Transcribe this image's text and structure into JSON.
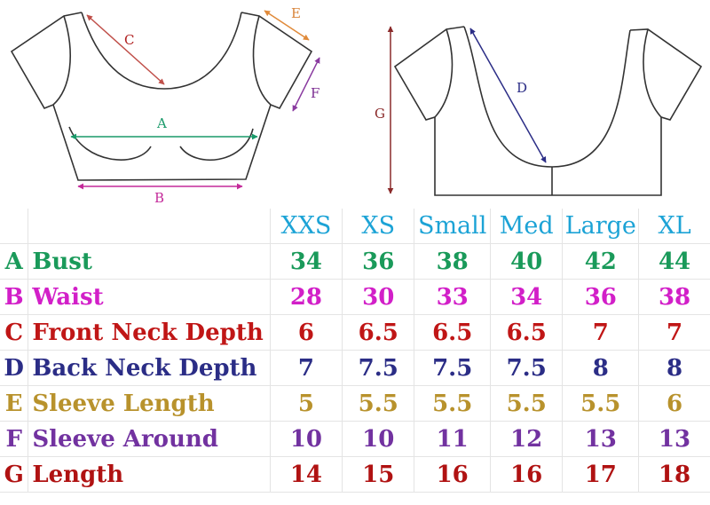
{
  "diagram": {
    "front_labels": {
      "A": "A",
      "B": "B",
      "C": "C",
      "E": "E",
      "F": "F"
    },
    "back_labels": {
      "D": "D",
      "G": "G"
    }
  },
  "table": {
    "header_color": "#1ca3d6",
    "sizes": [
      "XXS",
      "XS",
      "Small",
      "Med",
      "Large",
      "XL"
    ],
    "rows": [
      {
        "letter": "A",
        "label": "Bust",
        "color": "#1a9a5a",
        "values": [
          "34",
          "36",
          "38",
          "40",
          "42",
          "44"
        ]
      },
      {
        "letter": "B",
        "label": "Waist",
        "color": "#d21fc8",
        "values": [
          "28",
          "30",
          "33",
          "34",
          "36",
          "38"
        ]
      },
      {
        "letter": "C",
        "label": "Front Neck Depth",
        "color": "#c01616",
        "values": [
          "6",
          "6.5",
          "6.5",
          "6.5",
          "7",
          "7"
        ]
      },
      {
        "letter": "D",
        "label": "Back Neck Depth",
        "color": "#2b2d86",
        "values": [
          "7",
          "7.5",
          "7.5",
          "7.5",
          "8",
          "8"
        ]
      },
      {
        "letter": "E",
        "label": "Sleeve Length",
        "color": "#b8922c",
        "values": [
          "5",
          "5.5",
          "5.5",
          "5.5",
          "5.5",
          "6"
        ]
      },
      {
        "letter": "F",
        "label": "Sleeve Around",
        "color": "#7232a0",
        "values": [
          "10",
          "10",
          "11",
          "12",
          "13",
          "13"
        ]
      },
      {
        "letter": "G",
        "label": "Length",
        "color": "#b01212",
        "values": [
          "14",
          "15",
          "16",
          "16",
          "17",
          "18"
        ]
      }
    ]
  }
}
